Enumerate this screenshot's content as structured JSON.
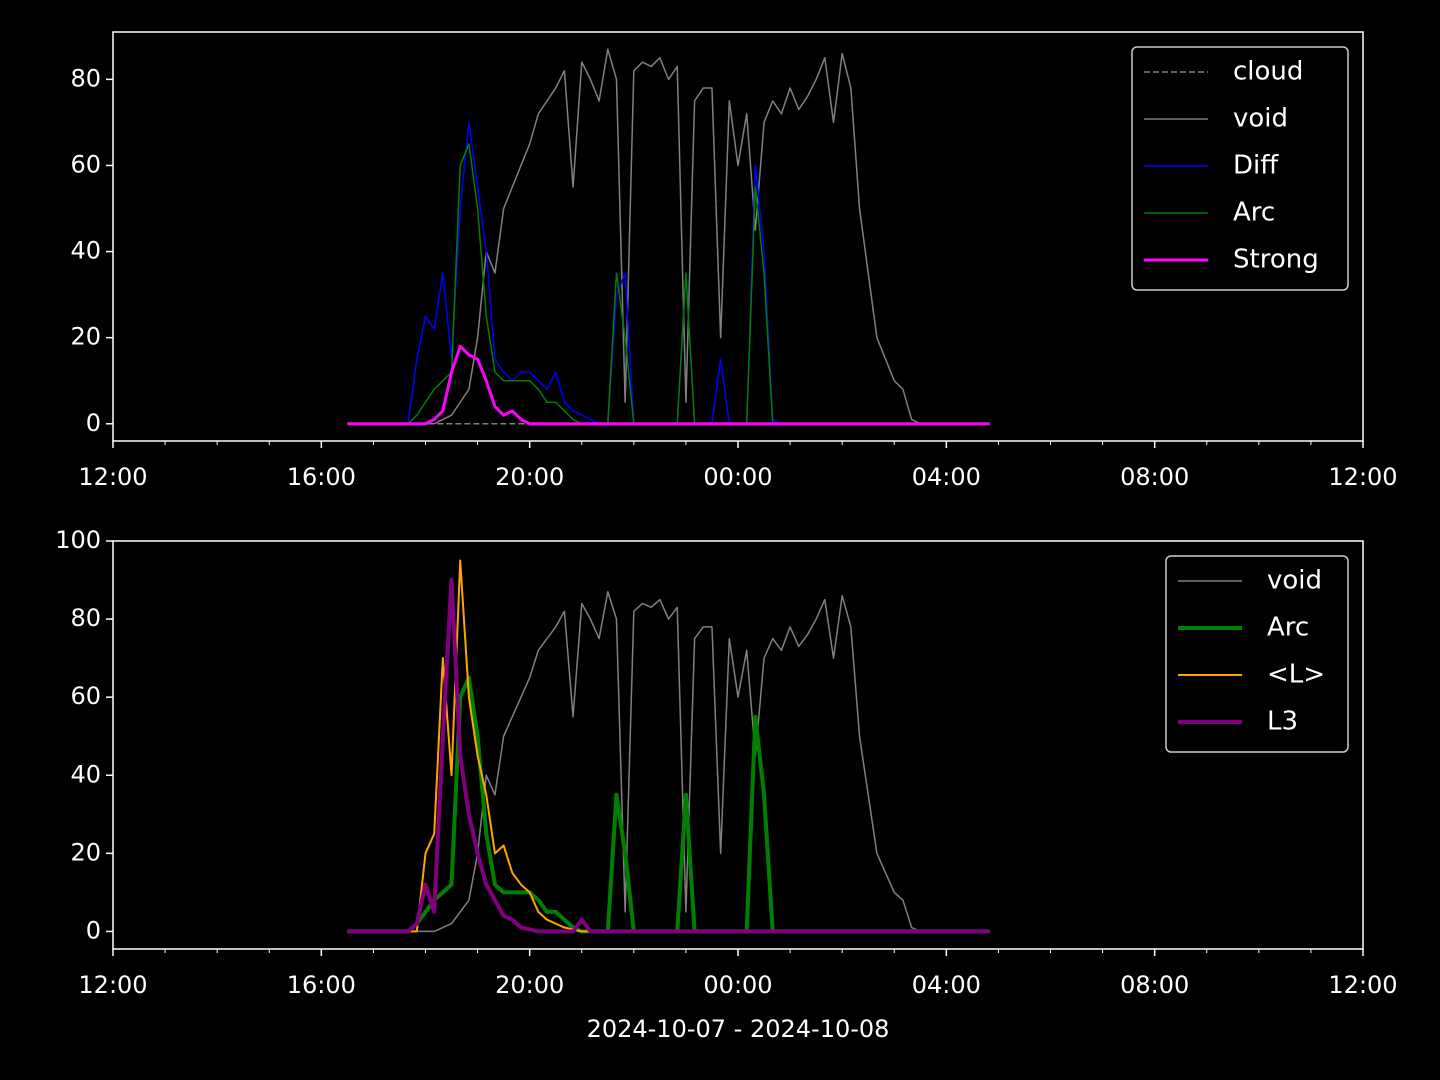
{
  "chart_data": [
    {
      "type": "line",
      "x": [
        "2024-10-07 16:30",
        "2024-10-07 16:40",
        "2024-10-07 16:50",
        "2024-10-07 17:00",
        "2024-10-07 17:10",
        "2024-10-07 17:20",
        "2024-10-07 17:30",
        "2024-10-07 17:40",
        "2024-10-07 17:50",
        "2024-10-07 18:00",
        "2024-10-07 18:10",
        "2024-10-07 18:20",
        "2024-10-07 18:30",
        "2024-10-07 18:40",
        "2024-10-07 18:50",
        "2024-10-07 19:00",
        "2024-10-07 19:10",
        "2024-10-07 19:20",
        "2024-10-07 19:30",
        "2024-10-07 19:40",
        "2024-10-07 19:50",
        "2024-10-07 20:00",
        "2024-10-07 20:10",
        "2024-10-07 20:20",
        "2024-10-07 20:30",
        "2024-10-07 20:40",
        "2024-10-07 20:50",
        "2024-10-07 21:00",
        "2024-10-07 21:10",
        "2024-10-07 21:20",
        "2024-10-07 21:30",
        "2024-10-07 21:40",
        "2024-10-07 21:50",
        "2024-10-07 22:00",
        "2024-10-07 22:10",
        "2024-10-07 22:20",
        "2024-10-07 22:30",
        "2024-10-07 22:40",
        "2024-10-07 22:50",
        "2024-10-07 23:00",
        "2024-10-07 23:10",
        "2024-10-07 23:20",
        "2024-10-07 23:30",
        "2024-10-07 23:40",
        "2024-10-07 23:50",
        "2024-10-08 00:00",
        "2024-10-08 00:10",
        "2024-10-08 00:20",
        "2024-10-08 00:30",
        "2024-10-08 00:40",
        "2024-10-08 00:50",
        "2024-10-08 01:00",
        "2024-10-08 01:10",
        "2024-10-08 01:20",
        "2024-10-08 01:30",
        "2024-10-08 01:40",
        "2024-10-08 01:50",
        "2024-10-08 02:00",
        "2024-10-08 02:10",
        "2024-10-08 02:20",
        "2024-10-08 02:30",
        "2024-10-08 02:40",
        "2024-10-08 02:50",
        "2024-10-08 03:00",
        "2024-10-08 03:10",
        "2024-10-08 03:20",
        "2024-10-08 03:30",
        "2024-10-08 03:40",
        "2024-10-08 03:50",
        "2024-10-08 04:00",
        "2024-10-08 04:10",
        "2024-10-08 04:20",
        "2024-10-08 04:30",
        "2024-10-08 04:40",
        "2024-10-08 04:50"
      ],
      "series": [
        {
          "name": "cloud",
          "color": "#808080",
          "linewidth": 1.5,
          "linestyle": "dashed",
          "values": [
            0,
            0,
            0,
            0,
            0,
            0,
            0,
            0,
            0,
            0,
            0,
            0,
            0,
            0,
            0,
            0,
            0,
            0,
            0,
            0,
            0,
            0,
            0,
            0,
            0,
            0,
            0,
            0,
            0,
            0,
            0,
            0,
            0,
            0,
            0,
            0,
            0,
            0,
            0,
            0,
            0,
            0,
            0,
            0,
            0,
            0,
            0,
            0,
            0,
            0,
            0,
            0,
            0,
            0,
            0,
            0,
            0,
            0,
            0,
            0,
            0,
            0,
            0,
            0,
            0,
            0,
            0,
            0,
            0,
            0,
            0,
            0,
            0,
            0,
            0
          ]
        },
        {
          "name": "void",
          "color": "#808080",
          "linewidth": 1.5,
          "values": [
            0,
            0,
            0,
            0,
            0,
            0,
            0,
            0,
            0,
            0,
            0,
            1,
            2,
            5,
            8,
            20,
            40,
            35,
            50,
            55,
            60,
            65,
            72,
            75,
            78,
            82,
            55,
            84,
            80,
            75,
            87,
            80,
            5,
            82,
            84,
            83,
            85,
            80,
            83,
            5,
            75,
            78,
            78,
            20,
            75,
            60,
            72,
            45,
            70,
            75,
            72,
            78,
            73,
            76,
            80,
            85,
            70,
            86,
            78,
            50,
            35,
            20,
            15,
            10,
            8,
            1,
            0,
            0,
            0,
            0,
            0,
            0,
            0,
            0,
            0
          ]
        },
        {
          "name": "Diff",
          "color": "#0000ff",
          "linewidth": 1.5,
          "values": [
            0,
            0,
            0,
            0,
            0,
            0,
            0,
            0,
            15,
            25,
            22,
            35,
            15,
            50,
            70,
            55,
            40,
            15,
            12,
            10,
            12,
            12,
            10,
            8,
            12,
            5,
            3,
            2,
            1,
            0,
            0,
            30,
            35,
            0,
            0,
            0,
            0,
            0,
            0,
            35,
            0,
            0,
            0,
            15,
            0,
            0,
            0,
            60,
            40,
            1,
            0,
            0,
            0,
            0,
            0,
            0,
            0,
            0,
            0,
            0,
            0,
            0,
            0,
            0,
            0,
            0,
            0,
            0,
            0,
            0,
            0,
            0,
            0,
            0,
            0
          ]
        },
        {
          "name": "Arc",
          "color": "#008000",
          "linewidth": 1.5,
          "values": [
            0,
            0,
            0,
            0,
            0,
            0,
            0,
            0,
            2,
            5,
            8,
            10,
            12,
            60,
            65,
            50,
            25,
            12,
            10,
            10,
            10,
            10,
            8,
            5,
            5,
            3,
            1,
            0,
            0,
            0,
            0,
            35,
            20,
            0,
            0,
            0,
            0,
            0,
            0,
            35,
            0,
            0,
            0,
            0,
            0,
            0,
            0,
            55,
            35,
            0,
            0,
            0,
            0,
            0,
            0,
            0,
            0,
            0,
            0,
            0,
            0,
            0,
            0,
            0,
            0,
            0,
            0,
            0,
            0,
            0,
            0,
            0,
            0,
            0,
            0
          ]
        },
        {
          "name": "Strong",
          "color": "#ff00ff",
          "linewidth": 3,
          "values": [
            0,
            0,
            0,
            0,
            0,
            0,
            0,
            0,
            0,
            0,
            1,
            3,
            12,
            18,
            16,
            15,
            10,
            4,
            2,
            3,
            1,
            0,
            0,
            0,
            0,
            0,
            0,
            0,
            0,
            0,
            0,
            0,
            0,
            0,
            0,
            0,
            0,
            0,
            0,
            0,
            0,
            0,
            0,
            0,
            0,
            0,
            0,
            0,
            0,
            0,
            0,
            0,
            0,
            0,
            0,
            0,
            0,
            0,
            0,
            0,
            0,
            0,
            0,
            0,
            0,
            0,
            0,
            0,
            0,
            0,
            0,
            0,
            0,
            0,
            0
          ]
        }
      ],
      "xlim": [
        "2024-10-07 12:00",
        "2024-10-08 12:00"
      ],
      "xticks": [
        {
          "value": "2024-10-07 12:00",
          "label": "12:00"
        },
        {
          "value": "2024-10-07 16:00",
          "label": "16:00"
        },
        {
          "value": "2024-10-07 20:00",
          "label": "20:00"
        },
        {
          "value": "2024-10-08 00:00",
          "label": "00:00"
        },
        {
          "value": "2024-10-08 04:00",
          "label": "04:00"
        },
        {
          "value": "2024-10-08 08:00",
          "label": "08:00"
        },
        {
          "value": "2024-10-08 12:00",
          "label": "12:00"
        }
      ],
      "ylim": [
        -4,
        91
      ],
      "yticks": [
        0,
        20,
        40,
        60,
        80
      ],
      "legend": "upper right"
    },
    {
      "type": "line",
      "x": [
        "2024-10-07 16:30",
        "2024-10-07 16:40",
        "2024-10-07 16:50",
        "2024-10-07 17:00",
        "2024-10-07 17:10",
        "2024-10-07 17:20",
        "2024-10-07 17:30",
        "2024-10-07 17:40",
        "2024-10-07 17:50",
        "2024-10-07 18:00",
        "2024-10-07 18:10",
        "2024-10-07 18:20",
        "2024-10-07 18:30",
        "2024-10-07 18:40",
        "2024-10-07 18:50",
        "2024-10-07 19:00",
        "2024-10-07 19:10",
        "2024-10-07 19:20",
        "2024-10-07 19:30",
        "2024-10-07 19:40",
        "2024-10-07 19:50",
        "2024-10-07 20:00",
        "2024-10-07 20:10",
        "2024-10-07 20:20",
        "2024-10-07 20:30",
        "2024-10-07 20:40",
        "2024-10-07 20:50",
        "2024-10-07 21:00",
        "2024-10-07 21:10",
        "2024-10-07 21:20",
        "2024-10-07 21:30",
        "2024-10-07 21:40",
        "2024-10-07 21:50",
        "2024-10-07 22:00",
        "2024-10-07 22:10",
        "2024-10-07 22:20",
        "2024-10-07 22:30",
        "2024-10-07 22:40",
        "2024-10-07 22:50",
        "2024-10-07 23:00",
        "2024-10-07 23:10",
        "2024-10-07 23:20",
        "2024-10-07 23:30",
        "2024-10-07 23:40",
        "2024-10-07 23:50",
        "2024-10-08 00:00",
        "2024-10-08 00:10",
        "2024-10-08 00:20",
        "2024-10-08 00:30",
        "2024-10-08 00:40",
        "2024-10-08 00:50",
        "2024-10-08 01:00",
        "2024-10-08 01:10",
        "2024-10-08 01:20",
        "2024-10-08 01:30",
        "2024-10-08 01:40",
        "2024-10-08 01:50",
        "2024-10-08 02:00",
        "2024-10-08 02:10",
        "2024-10-08 02:20",
        "2024-10-08 02:30",
        "2024-10-08 02:40",
        "2024-10-08 02:50",
        "2024-10-08 03:00",
        "2024-10-08 03:10",
        "2024-10-08 03:20",
        "2024-10-08 03:30",
        "2024-10-08 03:40",
        "2024-10-08 03:50",
        "2024-10-08 04:00",
        "2024-10-08 04:10",
        "2024-10-08 04:20",
        "2024-10-08 04:30",
        "2024-10-08 04:40",
        "2024-10-08 04:50"
      ],
      "series": [
        {
          "name": "void",
          "color": "#808080",
          "linewidth": 1.5,
          "values": [
            0,
            0,
            0,
            0,
            0,
            0,
            0,
            0,
            0,
            0,
            0,
            1,
            2,
            5,
            8,
            20,
            40,
            35,
            50,
            55,
            60,
            65,
            72,
            75,
            78,
            82,
            55,
            84,
            80,
            75,
            87,
            80,
            5,
            82,
            84,
            83,
            85,
            80,
            83,
            5,
            75,
            78,
            78,
            20,
            75,
            60,
            72,
            45,
            70,
            75,
            72,
            78,
            73,
            76,
            80,
            85,
            70,
            86,
            78,
            50,
            35,
            20,
            15,
            10,
            8,
            1,
            0,
            0,
            0,
            0,
            0,
            0,
            0,
            0,
            0
          ]
        },
        {
          "name": "Arc",
          "color": "#008000",
          "linewidth": 4,
          "values": [
            0,
            0,
            0,
            0,
            0,
            0,
            0,
            0,
            2,
            5,
            8,
            10,
            12,
            60,
            65,
            50,
            25,
            12,
            10,
            10,
            10,
            10,
            8,
            5,
            5,
            3,
            1,
            0,
            0,
            0,
            0,
            35,
            20,
            0,
            0,
            0,
            0,
            0,
            0,
            35,
            0,
            0,
            0,
            0,
            0,
            0,
            0,
            55,
            35,
            0,
            0,
            0,
            0,
            0,
            0,
            0,
            0,
            0,
            0,
            0,
            0,
            0,
            0,
            0,
            0,
            0,
            0,
            0,
            0,
            0,
            0,
            0,
            0,
            0,
            0
          ]
        },
        {
          "name": "<L>",
          "color": "#ffa500",
          "linewidth": 2,
          "values": [
            0,
            0,
            0,
            0,
            0,
            0,
            0,
            0,
            0,
            20,
            25,
            70,
            40,
            95,
            60,
            45,
            35,
            20,
            22,
            15,
            12,
            10,
            5,
            3,
            2,
            1,
            0.5,
            0,
            0,
            0,
            0,
            0,
            0,
            0,
            0,
            0,
            0,
            0,
            0,
            0,
            0,
            0,
            0,
            0,
            0,
            0,
            0,
            0,
            0,
            0,
            0,
            0,
            0,
            0,
            0,
            0,
            0,
            0,
            0,
            0,
            0,
            0,
            0,
            0,
            0,
            0,
            0,
            0,
            0,
            0,
            0,
            0,
            0,
            0,
            0
          ]
        },
        {
          "name": "L3",
          "color": "#800080",
          "linewidth": 4,
          "values": [
            0,
            0,
            0,
            0,
            0,
            0,
            0,
            0,
            2,
            12,
            5,
            50,
            90,
            45,
            30,
            20,
            12,
            8,
            4,
            3,
            1,
            0.5,
            0,
            0,
            0,
            0,
            0,
            3,
            0,
            0,
            0,
            0,
            0,
            0,
            0,
            0,
            0,
            0,
            0,
            0,
            0,
            0,
            0,
            0,
            0,
            0,
            0,
            0,
            0,
            0,
            0,
            0,
            0,
            0,
            0,
            0,
            0,
            0,
            0,
            0,
            0,
            0,
            0,
            0,
            0,
            0,
            0,
            0,
            0,
            0,
            0,
            0,
            0,
            0,
            0
          ]
        }
      ],
      "xlim": [
        "2024-10-07 12:00",
        "2024-10-08 12:00"
      ],
      "xticks": [
        {
          "value": "2024-10-07 12:00",
          "label": "12:00"
        },
        {
          "value": "2024-10-07 16:00",
          "label": "16:00"
        },
        {
          "value": "2024-10-07 20:00",
          "label": "20:00"
        },
        {
          "value": "2024-10-08 00:00",
          "label": "00:00"
        },
        {
          "value": "2024-10-08 04:00",
          "label": "04:00"
        },
        {
          "value": "2024-10-08 08:00",
          "label": "08:00"
        },
        {
          "value": "2024-10-08 12:00",
          "label": "12:00"
        }
      ],
      "ylim": [
        -4.5,
        100
      ],
      "yticks": [
        0,
        20,
        40,
        60,
        80,
        100
      ],
      "legend": "upper right",
      "xlabel": "2024-10-07 - 2024-10-08"
    }
  ]
}
